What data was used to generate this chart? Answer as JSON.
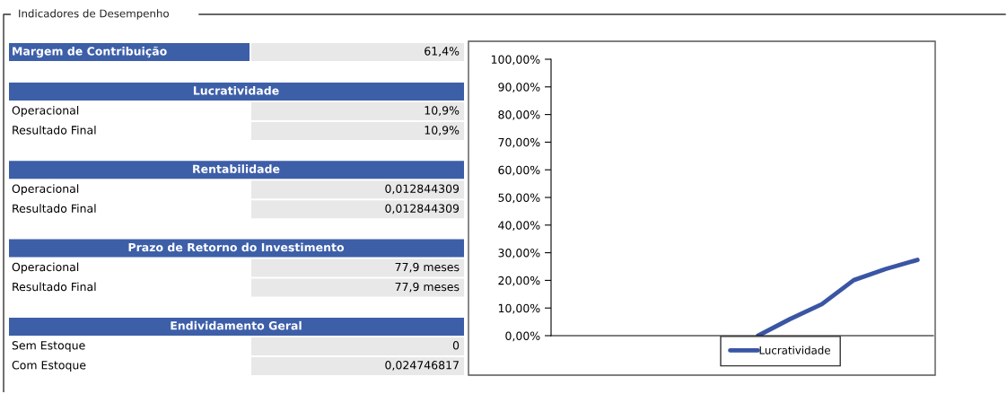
{
  "chart_data": [
    {
      "type": "other",
      "title": "Indicadores de Desempenho",
      "annotations": [
        "Margem de Contribuição",
        "61,4%",
        "Lucratividade",
        "Operacional",
        "10,9%",
        "Resultado Final",
        "10,9%",
        "Rentabilidade",
        "Operacional",
        "0,012844309",
        "Resultado Final",
        "0,012844309",
        "Prazo de Retorno do Investimento",
        "Operacional",
        "77,9 meses",
        "Resultado Final",
        "77,9 meses",
        "Endividamento Geral",
        "Sem Estoque",
        "0",
        "Com Estoque",
        "0,024746817"
      ]
    },
    {
      "type": "line",
      "categories": [
        null,
        null,
        null,
        null,
        null,
        null,
        null,
        null,
        null,
        null,
        null,
        null
      ],
      "series": [
        {
          "name": "Lucratividade",
          "color": "#3a55a4",
          "values": [
            null,
            null,
            null,
            null,
            null,
            null,
            0,
            6,
            11.4,
            20.1,
            24.1,
            27.4
          ]
        }
      ],
      "ylim": [
        0,
        100
      ],
      "yticks": [
        {
          "value": 0,
          "label": "0,00%"
        },
        {
          "value": 10,
          "label": "10,00%"
        },
        {
          "value": 20,
          "label": "20,00%"
        },
        {
          "value": 30,
          "label": "30,00%"
        },
        {
          "value": 40,
          "label": "40,00%"
        },
        {
          "value": 50,
          "label": "50,00%"
        },
        {
          "value": 60,
          "label": "60,00%"
        },
        {
          "value": 70,
          "label": "70,00%"
        },
        {
          "value": 80,
          "label": "80,00%"
        },
        {
          "value": 90,
          "label": "90,00%"
        },
        {
          "value": 100,
          "label": "100,00%"
        }
      ],
      "tick_labels": "y",
      "grid": false,
      "legend": "bottom",
      "marker": "none",
      "line_style": "solid"
    }
  ]
}
